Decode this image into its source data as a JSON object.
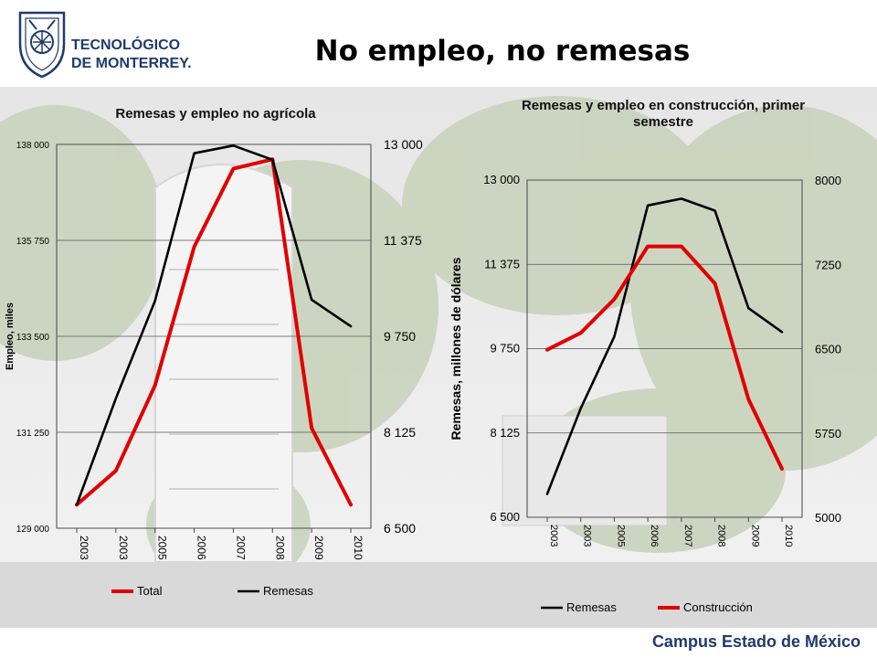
{
  "header": {
    "title": "No empleo, no remesas",
    "logo_line1": "TECNOLÓGICO",
    "logo_line2": "DE MONTERREY."
  },
  "footer": {
    "campus": "Campus Estado de México"
  },
  "colors": {
    "red": "#e00000",
    "black": "#000000",
    "footer_blue": "#1f3a6e"
  },
  "chart_data": [
    {
      "type": "line",
      "title": "Remesas y empleo no agrícola",
      "ylabel": "Empleo, miles",
      "x": [
        "2003",
        "2003",
        "2005",
        "2006",
        "2007",
        "2008",
        "2009",
        "2010"
      ],
      "ylim_left": [
        129000,
        138000
      ],
      "yticks_left": [
        "129 000",
        "131 250",
        "133 500",
        "135 750",
        "138 000"
      ],
      "ylim_right": [
        6500,
        13000
      ],
      "yticks_right": [
        "6 500",
        "8 125",
        "9 750",
        "11 375",
        "13 000"
      ],
      "grid": true,
      "legend": "bottom",
      "series": [
        {
          "name": "Total",
          "axis": "left",
          "color": "#e00000",
          "values": [
            129550,
            130350,
            132350,
            135600,
            137430,
            137650,
            131350,
            129550
          ]
        },
        {
          "name": "Remesas",
          "axis": "right",
          "color": "#000000",
          "values": [
            6900,
            8700,
            10350,
            12850,
            12980,
            12740,
            10370,
            9920
          ]
        }
      ]
    },
    {
      "type": "line",
      "title": "Remesas y empleo en construcción, primer semestre",
      "ylabel": "Remesas, millones de dólares",
      "x": [
        "2003",
        "2003",
        "2005",
        "2006",
        "2007",
        "2008",
        "2009",
        "2010"
      ],
      "ylim_left": [
        6500,
        13000
      ],
      "yticks_left": [
        "6 500",
        "8 125",
        "9 750",
        "11 375",
        "13 000"
      ],
      "ylim_right": [
        5000,
        8000
      ],
      "yticks_right": [
        "5000",
        "5750",
        "6500",
        "7250",
        "8000"
      ],
      "grid": true,
      "legend": "bottom",
      "series": [
        {
          "name": "Remesas",
          "axis": "left",
          "color": "#000000",
          "values": [
            6950,
            8600,
            9980,
            12510,
            12640,
            12410,
            10530,
            10070
          ]
        },
        {
          "name": "Construcción",
          "axis": "right",
          "color": "#e00000",
          "values": [
            6490,
            6640,
            6940,
            7410,
            7410,
            7080,
            6050,
            5430
          ]
        }
      ]
    }
  ]
}
